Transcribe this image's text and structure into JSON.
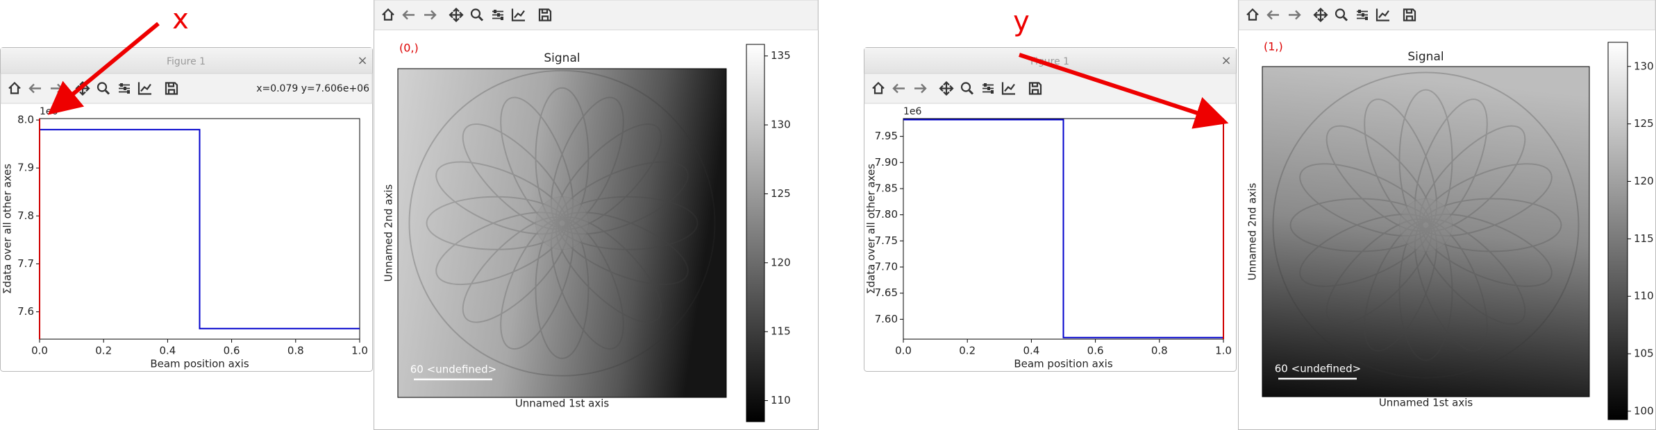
{
  "annotations": [
    "x",
    "y"
  ],
  "plots": [
    {
      "figure_title": "Figure 1",
      "close": "×",
      "status": "x=0.079 y=7.606e+06",
      "offset_text": "1e6",
      "xlabel": "Beam position axis",
      "ylabel": "Σdata over all other axes",
      "xlim": [
        0,
        1
      ],
      "ylim": [
        7.543,
        8.003
      ],
      "xticks": [
        {
          "value": 0,
          "label": "0.0"
        },
        0.2,
        0.4,
        0.6,
        0.8,
        {
          "value": 1,
          "label": "1.0"
        }
      ],
      "yticks": [
        7.6,
        7.7,
        7.8,
        7.9,
        {
          "value": 8,
          "label": "8.0"
        }
      ],
      "x": [
        0,
        0.5,
        0.5,
        1
      ],
      "y": [
        7.98,
        7.98,
        7.565,
        7.565
      ],
      "color": "#0000cc",
      "marker_x": 0,
      "marker_color": "#d00000"
    },
    {
      "figure_title": "Figure 1",
      "close": "×",
      "offset_text": "1e6",
      "xlabel": "Beam position axis",
      "ylabel": "Σdata over all other axes",
      "xlim": [
        0,
        1
      ],
      "ylim": [
        7.562,
        7.984
      ],
      "xticks": [
        {
          "value": 0,
          "label": "0.0"
        },
        0.2,
        0.4,
        0.6,
        0.8,
        {
          "value": 1,
          "label": "1.0"
        }
      ],
      "yticks": [
        {
          "value": 7.6,
          "label": "7.60"
        },
        7.65,
        {
          "value": 7.7,
          "label": "7.70"
        },
        7.75,
        {
          "value": 7.8,
          "label": "7.80"
        },
        7.85,
        {
          "value": 7.9,
          "label": "7.90"
        },
        7.95
      ],
      "x": [
        0,
        0.5,
        0.5,
        1
      ],
      "y": [
        7.982,
        7.982,
        7.565,
        7.565
      ],
      "color": "#0000cc",
      "marker_x": 1,
      "marker_color": "#d00000"
    }
  ],
  "images": [
    {
      "index_label": "(0,)",
      "title": "Signal",
      "xlabel": "Unnamed 1st axis",
      "ylabel": "Unnamed 2nd axis",
      "scalebar": "60 <undefined>",
      "clim": [
        108.47,
        135.84
      ],
      "cticks": [
        110,
        115,
        120,
        125,
        130,
        135
      ]
    },
    {
      "index_label": "(1,)",
      "title": "Signal",
      "xlabel": "Unnamed 1st axis",
      "ylabel": "Unnamed 2nd axis",
      "scalebar": "60 <undefined>",
      "clim": [
        99.27,
        132.1
      ],
      "cticks": [
        100,
        105,
        110,
        115,
        120,
        125,
        130
      ]
    }
  ]
}
